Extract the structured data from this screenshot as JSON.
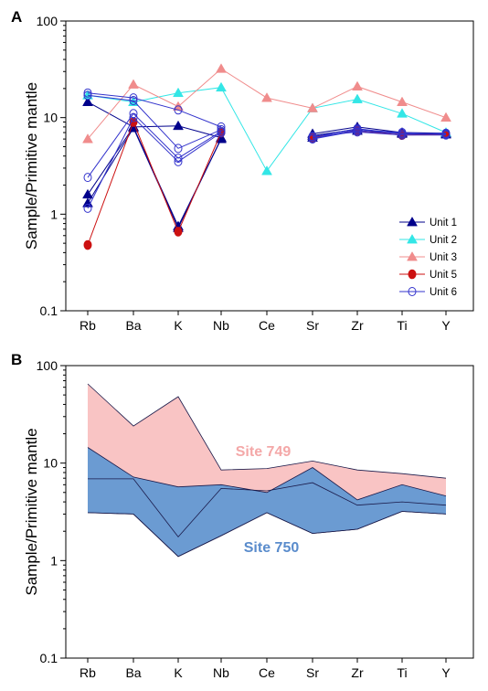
{
  "chart_data": [
    {
      "type": "line",
      "panel": "A",
      "ylabel": "Sample/Primitive mantle",
      "yscale": "log",
      "ylim": [
        0.1,
        100
      ],
      "yticks": [
        "0.1",
        "1",
        "10",
        "100"
      ],
      "categories": [
        "Rb",
        "Ba",
        "K",
        "Nb",
        "Ce",
        "Sr",
        "Zr",
        "Ti",
        "Y"
      ],
      "legend_position": "bottom-right",
      "series": [
        {
          "name": "Unit 1",
          "color": "#00008b",
          "marker": "triangle-filled",
          "lines": [
            [
              14.5,
              8.0,
              8.2,
              6.2,
              null,
              6.8,
              8.0,
              7.0,
              6.9
            ],
            [
              1.6,
              8.0,
              0.75,
              6.0,
              null,
              6.5,
              7.6,
              6.8,
              6.7
            ],
            [
              1.3,
              7.8,
              0.72,
              6.1,
              null,
              6.2,
              7.3,
              6.9,
              6.8
            ]
          ]
        },
        {
          "name": "Unit 2",
          "color": "#33e6e6",
          "marker": "triangle-filled",
          "lines": [
            [
              17.0,
              14.5,
              18.0,
              20.5,
              2.8,
              12.5,
              15.5,
              11.0,
              7.0
            ]
          ]
        },
        {
          "name": "Unit 3",
          "color": "#f08c8c",
          "marker": "triangle-filled",
          "lines": [
            [
              6.0,
              22.0,
              13.0,
              32.0,
              16.0,
              12.5,
              21.0,
              14.5,
              10.0
            ]
          ]
        },
        {
          "name": "Unit 5",
          "color": "#cc1111",
          "marker": "circle-filled",
          "lines": [
            [
              0.48,
              9.0,
              0.66,
              7.0,
              null,
              6.2,
              7.3,
              6.6,
              6.7
            ]
          ]
        },
        {
          "name": "Unit 6",
          "color": "#3333cc",
          "marker": "circle-open",
          "lines": [
            [
              18.0,
              16.0,
              12.0,
              8.0,
              null,
              6.0,
              7.3,
              6.8,
              6.9
            ],
            [
              17.0,
              15.0,
              4.8,
              7.5,
              null,
              6.1,
              7.5,
              7.0,
              6.7
            ],
            [
              2.4,
              11.0,
              3.8,
              7.2,
              null,
              6.3,
              7.7,
              6.8,
              6.8
            ],
            [
              1.15,
              10.0,
              3.5,
              7.0,
              null,
              6.4,
              7.1,
              6.6,
              6.6
            ]
          ]
        }
      ]
    },
    {
      "type": "area",
      "panel": "B",
      "ylabel": "Sample/Primitive mantle",
      "yscale": "log",
      "ylim": [
        0.1,
        100
      ],
      "yticks": [
        "0.1",
        "1",
        "10",
        "100"
      ],
      "categories": [
        "Rb",
        "Ba",
        "K",
        "Nb",
        "Ce",
        "Sr",
        "Zr",
        "Ti",
        "Y"
      ],
      "series": [
        {
          "name": "Site 749",
          "color": "#f9c4c4",
          "label_color": "#f4a8a8",
          "upper": [
            65,
            24,
            48,
            8.5,
            8.8,
            10.5,
            8.5,
            7.8,
            7.0
          ],
          "lower": [
            3.1,
            3.0,
            1.1,
            1.8,
            3.1,
            1.9,
            2.1,
            3.2,
            3.0
          ]
        },
        {
          "name": "Site 750",
          "color": "#6b9bd2",
          "label_color": "#5a8ccc",
          "upper": [
            14.5,
            7.2,
            5.7,
            6.0,
            5.0,
            9.0,
            4.2,
            6.0,
            4.6
          ],
          "lower": [
            3.1,
            3.0,
            1.1,
            1.8,
            3.1,
            1.9,
            2.1,
            3.2,
            3.0
          ],
          "inner_line": [
            6.9,
            6.9,
            1.75,
            5.5,
            5.2,
            6.3,
            3.7,
            4.0,
            3.7
          ]
        }
      ]
    }
  ]
}
